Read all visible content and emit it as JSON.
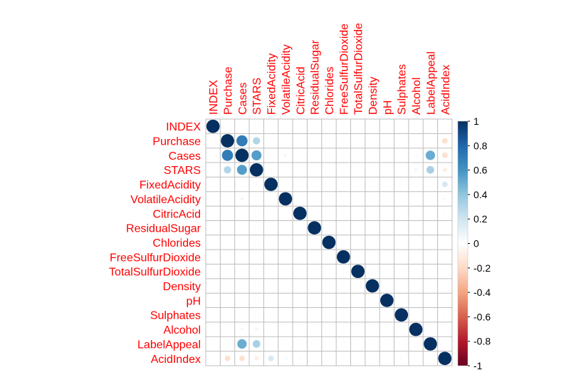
{
  "chart_data": {
    "type": "heatmap",
    "style": "corrplot-circle",
    "variables": [
      "INDEX",
      "Purchase",
      "Cases",
      "STARS",
      "FixedAcidity",
      "VolatileAcidity",
      "CitricAcid",
      "ResidualSugar",
      "Chlorides",
      "FreeSulfurDioxide",
      "TotalSulfurDioxide",
      "Density",
      "pH",
      "Sulphates",
      "Alcohol",
      "LabelAppeal",
      "AcidIndex"
    ],
    "correlations": [
      {
        "row": "Purchase",
        "col": "Cases",
        "value": 0.7
      },
      {
        "row": "Purchase",
        "col": "STARS",
        "value": 0.3
      },
      {
        "row": "Purchase",
        "col": "AcidIndex",
        "value": -0.17
      },
      {
        "row": "Cases",
        "col": "STARS",
        "value": 0.56
      },
      {
        "row": "Cases",
        "col": "VolatileAcidity",
        "value": -0.06
      },
      {
        "row": "Cases",
        "col": "Alcohol",
        "value": 0.05
      },
      {
        "row": "Cases",
        "col": "LabelAppeal",
        "value": 0.5
      },
      {
        "row": "Cases",
        "col": "AcidIndex",
        "value": -0.17
      },
      {
        "row": "STARS",
        "col": "FixedAcidity",
        "value": -0.04
      },
      {
        "row": "STARS",
        "col": "Alcohol",
        "value": 0.06
      },
      {
        "row": "STARS",
        "col": "LabelAppeal",
        "value": 0.33
      },
      {
        "row": "STARS",
        "col": "AcidIndex",
        "value": -0.1
      },
      {
        "row": "FixedAcidity",
        "col": "AcidIndex",
        "value": 0.18
      },
      {
        "row": "VolatileAcidity",
        "col": "AcidIndex",
        "value": 0.04
      },
      {
        "row": "CitricAcid",
        "col": "AcidIndex",
        "value": 0.03
      },
      {
        "row": "Sulphates",
        "col": "AcidIndex",
        "value": 0.03
      },
      {
        "row": "FixedAcidity",
        "col": "Sulphates",
        "value": 0.03
      }
    ],
    "colorbar": {
      "ticks": [
        "-1",
        "-0.8",
        "-0.6",
        "-0.4",
        "-0.2",
        "0",
        "0.2",
        "0.4",
        "0.6",
        "0.8",
        "1"
      ],
      "min": -1,
      "max": 1,
      "colors": [
        "#67001F",
        "#B2182B",
        "#D6604D",
        "#F4A582",
        "#FDDBC7",
        "#FFFFFF",
        "#D1E5F0",
        "#92C5DE",
        "#4393C3",
        "#2166AC",
        "#053061"
      ]
    }
  }
}
